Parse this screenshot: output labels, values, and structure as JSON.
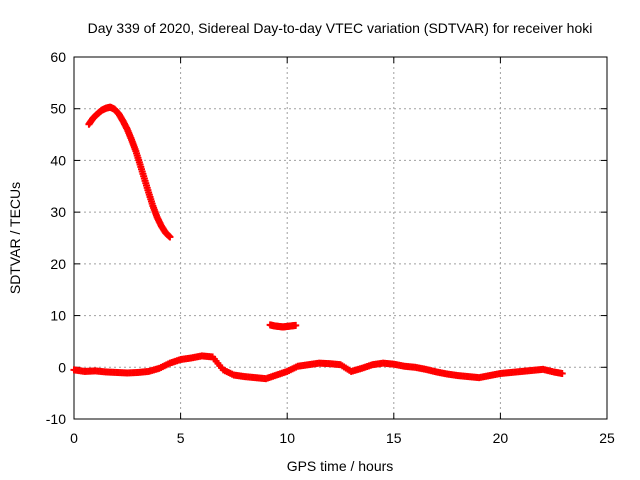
{
  "chart_data": {
    "type": "scatter",
    "title": "Day 339 of 2020, Sidereal Day-to-day VTEC variation (SDTVAR) for receiver hoki",
    "xlabel": "GPS time / hours",
    "ylabel": "SDTVAR / TECUs",
    "xlim": [
      0,
      25
    ],
    "ylim": [
      -10,
      60
    ],
    "xticks": [
      0,
      5,
      10,
      15,
      20,
      25
    ],
    "yticks": [
      -10,
      0,
      10,
      20,
      30,
      40,
      50,
      60
    ],
    "grid": true,
    "marker": "+",
    "color": "#ff0000",
    "series": [
      {
        "name": "arc-high",
        "x": [
          0.7,
          0.9,
          1.1,
          1.3,
          1.5,
          1.7,
          1.9,
          2.1,
          2.3,
          2.5,
          2.7,
          2.9,
          3.1,
          3.3,
          3.5,
          3.7,
          3.9,
          4.1,
          4.3,
          4.5
        ],
        "y": [
          47.0,
          48.2,
          49.0,
          49.7,
          50.1,
          50.3,
          49.9,
          49.0,
          47.6,
          46.0,
          44.0,
          41.8,
          39.2,
          36.5,
          33.8,
          31.2,
          29.0,
          27.3,
          26.0,
          25.2
        ]
      },
      {
        "name": "arc-mid",
        "x": [
          9.2,
          9.4,
          9.6,
          9.8,
          10.0,
          10.2,
          10.4
        ],
        "y": [
          8.2,
          8.0,
          7.9,
          7.8,
          7.9,
          8.0,
          8.1
        ]
      },
      {
        "name": "baseline",
        "x": [
          0.0,
          0.5,
          1.0,
          1.5,
          2.0,
          2.5,
          3.0,
          3.5,
          4.0,
          4.5,
          5.0,
          5.5,
          6.0,
          6.5,
          7.0,
          7.5,
          8.0,
          8.5,
          9.0,
          9.5,
          10.0,
          10.5,
          11.0,
          11.5,
          12.0,
          12.5,
          13.0,
          13.5,
          14.0,
          14.5,
          15.0,
          15.5,
          16.0,
          16.5,
          17.0,
          17.5,
          18.0,
          18.5,
          19.0,
          19.5,
          20.0,
          20.5,
          21.0,
          21.5,
          22.0,
          22.5,
          22.9
        ],
        "y": [
          -0.5,
          -0.8,
          -0.7,
          -0.9,
          -1.0,
          -1.1,
          -1.0,
          -0.8,
          -0.2,
          0.8,
          1.5,
          1.8,
          2.2,
          2.0,
          -0.5,
          -1.5,
          -1.8,
          -2.0,
          -2.2,
          -1.5,
          -0.8,
          0.2,
          0.5,
          0.8,
          0.7,
          0.5,
          -0.8,
          -0.2,
          0.5,
          0.8,
          0.6,
          0.2,
          0.0,
          -0.4,
          -0.9,
          -1.3,
          -1.6,
          -1.8,
          -2.0,
          -1.6,
          -1.2,
          -1.0,
          -0.8,
          -0.6,
          -0.4,
          -0.9,
          -1.2
        ]
      }
    ]
  }
}
